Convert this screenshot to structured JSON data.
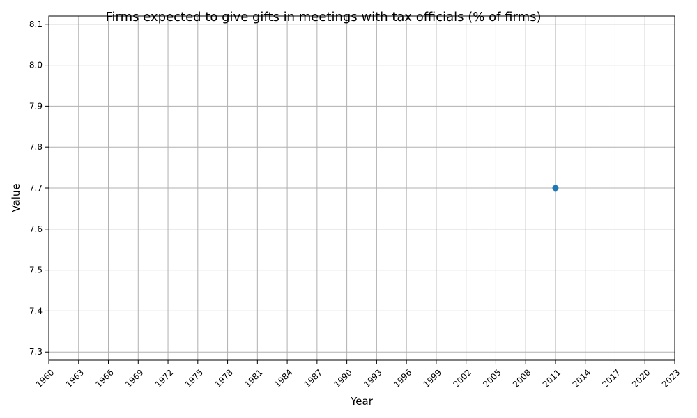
{
  "chart_data": {
    "type": "line",
    "title": "Firms expected to give gifts in meetings with tax officials (% of firms)",
    "xlabel": "Year",
    "ylabel": "Value",
    "xlim": [
      1960,
      2023
    ],
    "ylim": [
      7.28,
      8.12
    ],
    "xticks": [
      1960,
      1963,
      1966,
      1969,
      1972,
      1975,
      1978,
      1981,
      1984,
      1987,
      1990,
      1993,
      1996,
      1999,
      2002,
      2005,
      2008,
      2011,
      2014,
      2017,
      2020,
      2023
    ],
    "yticks": [
      7.3,
      7.4,
      7.5,
      7.6,
      7.7,
      7.8,
      7.9,
      8.0,
      8.1
    ],
    "ytick_labels": [
      "7.3",
      "7.4",
      "7.5",
      "7.6",
      "7.7",
      "7.8",
      "7.9",
      "8.0",
      "8.1"
    ],
    "grid": true,
    "series": [
      {
        "x": [
          2011
        ],
        "y": [
          7.7
        ],
        "color": "#1f77b4",
        "marker": "circle"
      }
    ]
  }
}
